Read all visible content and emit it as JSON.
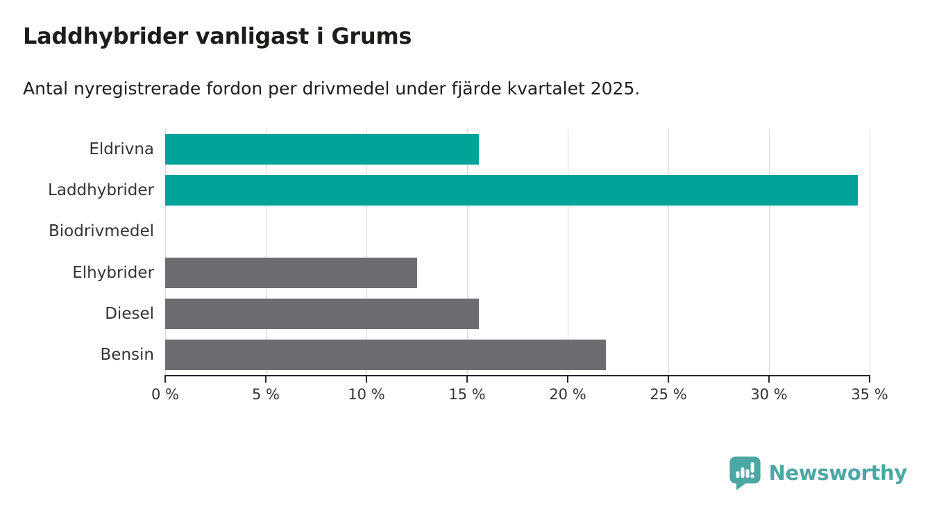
{
  "header": {
    "title": "Laddhybrider vanligast i Grums",
    "subtitle": "Antal nyregistrerade fordon per drivmedel under fjärde kvartalet 2025."
  },
  "chart_data": {
    "type": "bar",
    "orientation": "horizontal",
    "title": "Laddhybrider vanligast i Grums",
    "subtitle": "Antal nyregistrerade fordon per drivmedel under fjärde kvartalet 2025.",
    "categories": [
      "Eldrivna",
      "Laddhybrider",
      "Biodrivmedel",
      "Elhybrider",
      "Diesel",
      "Bensin"
    ],
    "values": [
      15.6,
      34.4,
      0,
      12.5,
      15.6,
      21.9
    ],
    "unit": "%",
    "xlim": [
      0,
      35
    ],
    "x_tick_values": [
      0,
      5,
      10,
      15,
      20,
      25,
      30,
      35
    ],
    "x_tick_labels": [
      "0 %",
      "5 %",
      "10 %",
      "15 %",
      "20 %",
      "25 %",
      "30 %",
      "35 %"
    ],
    "grid": "vertical",
    "legend": "none",
    "bar_colors": [
      "#00a299",
      "#00a299",
      "#00a299",
      "#6c6c71",
      "#6c6c71",
      "#6c6c71"
    ],
    "highlight_color": "#00a299",
    "default_color": "#6c6c71",
    "gridline_color": "#d9d9d9",
    "axis_color": "#262626"
  },
  "footer": {
    "brand": "Newsworthy",
    "brand_color": "#4aa7a4",
    "icon": "newsworthy-speech-bubble-chart-icon"
  }
}
